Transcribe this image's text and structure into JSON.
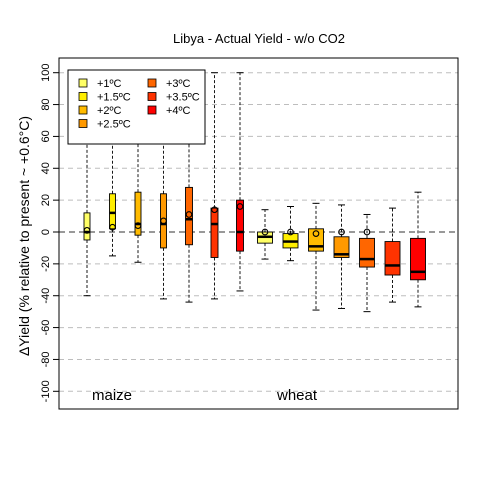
{
  "chart_data": {
    "type": "box",
    "title": "Libya - Actual Yield - w/o CO2",
    "ylabel": "ΔYield (% relative to present ~ +0.6°C)",
    "ylim": [
      -110,
      110
    ],
    "yticks": [
      -100,
      -80,
      -60,
      -40,
      -20,
      0,
      20,
      40,
      60,
      80,
      100
    ],
    "grid": "horizontal dashed",
    "legend_position": "top-left",
    "legend": [
      {
        "label": "+1ºC",
        "color": "#ffff66"
      },
      {
        "label": "+1.5ºC",
        "color": "#ffee00"
      },
      {
        "label": "+2ºC",
        "color": "#ffbb00"
      },
      {
        "label": "+2.5ºC",
        "color": "#ff9900"
      },
      {
        "label": "+3ºC",
        "color": "#ff6600"
      },
      {
        "label": "+3.5ºC",
        "color": "#ff3300"
      },
      {
        "label": "+4ºC",
        "color": "#ff0000"
      }
    ],
    "crops": [
      {
        "name": "maize",
        "boxes": [
          {
            "level": "+1ºC",
            "whisker_low": -40,
            "q1": -5,
            "median": 0,
            "q3": 12,
            "whisker_high": 100,
            "mean": 1
          },
          {
            "level": "+1.5ºC",
            "whisker_low": -15,
            "q1": 2,
            "median": 12,
            "q3": 24,
            "whisker_high": 100,
            "mean": 3
          },
          {
            "level": "+2ºC",
            "whisker_low": -19,
            "q1": -2,
            "median": 5,
            "q3": 25,
            "whisker_high": 100,
            "mean": 4
          },
          {
            "level": "+2.5ºC",
            "whisker_low": -42,
            "q1": -10,
            "median": 5,
            "q3": 24,
            "whisker_high": 100,
            "mean": 7
          },
          {
            "level": "+3ºC",
            "whisker_low": -44,
            "q1": -8,
            "median": 8,
            "q3": 28,
            "whisker_high": 100,
            "mean": 11
          },
          {
            "level": "+3.5ºC",
            "whisker_low": -42,
            "q1": -16,
            "median": 5,
            "q3": 15,
            "whisker_high": 100,
            "mean": 14
          },
          {
            "level": "+4ºC",
            "whisker_low": -37,
            "q1": -12,
            "median": 0,
            "q3": 20,
            "whisker_high": 100,
            "mean": 16
          }
        ]
      },
      {
        "name": "wheat",
        "boxes": [
          {
            "level": "+1ºC",
            "whisker_low": -17,
            "q1": -7,
            "median": -3,
            "q3": 0,
            "whisker_high": 14,
            "mean": 0
          },
          {
            "level": "+1.5ºC",
            "whisker_low": -18,
            "q1": -10,
            "median": -6,
            "q3": -1,
            "whisker_high": 16,
            "mean": 0
          },
          {
            "level": "+2ºC",
            "whisker_low": -49,
            "q1": -12,
            "median": -9,
            "q3": 2,
            "whisker_high": 18,
            "mean": -1
          },
          {
            "level": "+2.5ºC",
            "whisker_low": -48,
            "q1": -16,
            "median": -14,
            "q3": -3,
            "whisker_high": 17,
            "mean": 0
          },
          {
            "level": "+3ºC",
            "whisker_low": -50,
            "q1": -22,
            "median": -17,
            "q3": -4,
            "whisker_high": 11,
            "mean": 0
          },
          {
            "level": "+3.5ºC",
            "whisker_low": -44,
            "q1": -27,
            "median": -21,
            "q3": -6,
            "whisker_high": 15,
            "mean": null
          },
          {
            "level": "+4ºC",
            "whisker_low": -47,
            "q1": -30,
            "median": -25,
            "q3": -4,
            "whisker_high": 25,
            "mean": null
          }
        ]
      }
    ]
  }
}
